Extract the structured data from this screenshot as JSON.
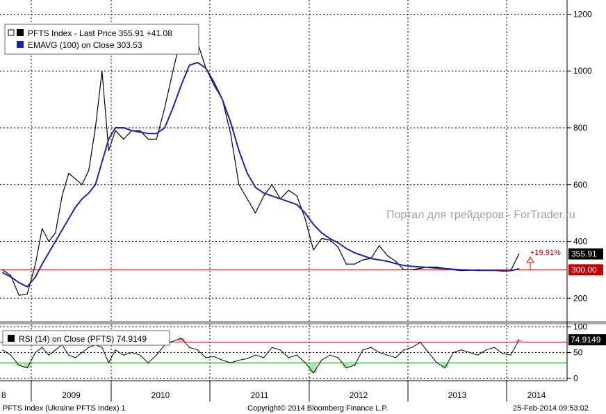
{
  "chart_data": [
    {
      "type": "line",
      "yaxis_side": "right",
      "ylim": [
        120,
        1250
      ],
      "yticks": [
        200,
        400,
        600,
        800,
        1000,
        1200
      ],
      "x_years": [
        "8",
        "2009",
        "2010",
        "2011",
        "2012",
        "2013",
        "2014"
      ],
      "grid": true,
      "legend_placement": "top-left",
      "legend": [
        {
          "marker": "box",
          "text": "PFTS Index - Last Price 355.91  +41.08",
          "color": "#000000"
        },
        {
          "marker": "box",
          "text": "EMAVG (100) on Close   303.53",
          "color": "#1a24b0"
        }
      ],
      "series": [
        {
          "name": "PFTS Index - Last Price",
          "color": "#000000",
          "x": [
            "2008-09",
            "2008-10",
            "2008-11",
            "2008-12",
            "2009-01",
            "2009-02",
            "2009-03",
            "2009-04",
            "2009-05",
            "2009-06",
            "2009-07",
            "2009-08",
            "2009-09",
            "2009-10",
            "2009-11",
            "2009-12",
            "2010-01",
            "2010-02",
            "2010-03",
            "2010-04",
            "2010-05",
            "2010-06",
            "2010-07",
            "2010-08",
            "2010-09",
            "2010-10",
            "2010-11",
            "2010-12",
            "2011-01",
            "2011-02",
            "2011-03",
            "2011-04",
            "2011-05",
            "2011-06",
            "2011-07",
            "2011-08",
            "2011-09",
            "2011-10",
            "2011-11",
            "2011-12",
            "2012-01",
            "2012-02",
            "2012-03",
            "2012-04",
            "2012-05",
            "2012-06",
            "2012-07",
            "2012-08",
            "2012-09",
            "2012-10",
            "2012-11",
            "2012-12",
            "2013-01",
            "2013-02",
            "2013-03",
            "2013-04",
            "2013-05",
            "2013-06",
            "2013-07",
            "2013-08",
            "2013-09",
            "2013-10",
            "2013-11",
            "2013-12",
            "2014-01",
            "2014-02"
          ],
          "values": [
            300,
            280,
            210,
            215,
            320,
            445,
            400,
            430,
            560,
            640,
            620,
            600,
            650,
            800,
            1000,
            720,
            790,
            760,
            790,
            790,
            760,
            760,
            870,
            1000,
            1120,
            1070,
            1100,
            1010,
            950,
            900,
            780,
            600,
            550,
            500,
            560,
            600,
            550,
            580,
            560,
            480,
            370,
            410,
            405,
            380,
            320,
            320,
            335,
            340,
            385,
            350,
            330,
            300,
            300,
            305,
            310,
            310,
            305,
            300,
            297,
            298,
            300,
            298,
            298,
            295,
            297,
            355.91
          ]
        },
        {
          "name": "EMAVG (100) on Close",
          "color": "#1a24b0",
          "x": [
            "2008-09",
            "2008-10",
            "2008-11",
            "2008-12",
            "2009-01",
            "2009-02",
            "2009-03",
            "2009-04",
            "2009-05",
            "2009-06",
            "2009-07",
            "2009-08",
            "2009-09",
            "2009-10",
            "2009-11",
            "2009-12",
            "2010-01",
            "2010-02",
            "2010-03",
            "2010-04",
            "2010-05",
            "2010-06",
            "2010-07",
            "2010-08",
            "2010-09",
            "2010-10",
            "2010-11",
            "2010-12",
            "2011-01",
            "2011-02",
            "2011-03",
            "2011-04",
            "2011-05",
            "2011-06",
            "2011-07",
            "2011-08",
            "2011-09",
            "2011-10",
            "2011-11",
            "2011-12",
            "2012-01",
            "2012-02",
            "2012-03",
            "2012-04",
            "2012-05",
            "2012-06",
            "2012-07",
            "2012-08",
            "2012-09",
            "2012-10",
            "2012-11",
            "2012-12",
            "2013-01",
            "2013-02",
            "2013-03",
            "2013-04",
            "2013-05",
            "2013-06",
            "2013-07",
            "2013-08",
            "2013-09",
            "2013-10",
            "2013-11",
            "2013-12",
            "2014-01",
            "2014-02"
          ],
          "values": [
            290,
            275,
            255,
            240,
            275,
            320,
            360,
            400,
            440,
            480,
            520,
            550,
            570,
            600,
            680,
            760,
            800,
            800,
            790,
            785,
            780,
            780,
            800,
            870,
            950,
            1020,
            1030,
            1010,
            960,
            900,
            820,
            720,
            640,
            590,
            570,
            560,
            550,
            540,
            530,
            500,
            460,
            430,
            410,
            395,
            375,
            360,
            350,
            340,
            335,
            330,
            322,
            315,
            312,
            310,
            308,
            306,
            304,
            302,
            300,
            299,
            298,
            298,
            298,
            297,
            297,
            303.53
          ]
        }
      ],
      "hlines": [
        {
          "value": 300,
          "label": "300.00",
          "color": "#c80000"
        }
      ],
      "price_tags": [
        {
          "value": 355.91,
          "label": "355.91",
          "bg": "#000000"
        },
        {
          "value": 300,
          "label": "300.00",
          "bg": "#c80000"
        }
      ],
      "annotations": [
        {
          "text": "+19.91%",
          "color": "#c80000"
        }
      ],
      "watermark": "Портал для трейдеров - ForTrader.ru"
    },
    {
      "type": "line",
      "yaxis_side": "right",
      "ylim": [
        -5,
        105
      ],
      "yticks": [
        0,
        50,
        100
      ],
      "legend_placement": "top-left",
      "legend": [
        {
          "marker": "box",
          "text": "RSI (14) on Close (PFTS) 74.9149",
          "color": "#000000"
        }
      ],
      "hlines": [
        {
          "value": 70,
          "color": "#c80000"
        },
        {
          "value": 30,
          "color": "#00a000"
        }
      ],
      "price_tags": [
        {
          "value": 74.9149,
          "label": "74.9149",
          "bg": "#000000"
        }
      ],
      "series": [
        {
          "name": "RSI (14) on Close (PFTS)",
          "color": "#000000",
          "x": [
            "2008-09",
            "2008-10",
            "2008-11",
            "2008-12",
            "2009-01",
            "2009-02",
            "2009-03",
            "2009-04",
            "2009-05",
            "2009-06",
            "2009-07",
            "2009-08",
            "2009-09",
            "2009-10",
            "2009-11",
            "2009-12",
            "2010-01",
            "2010-02",
            "2010-03",
            "2010-04",
            "2010-05",
            "2010-06",
            "2010-07",
            "2010-08",
            "2010-09",
            "2010-10",
            "2010-11",
            "2010-12",
            "2011-01",
            "2011-02",
            "2011-03",
            "2011-04",
            "2011-05",
            "2011-06",
            "2011-07",
            "2011-08",
            "2011-09",
            "2011-10",
            "2011-11",
            "2011-12",
            "2012-01",
            "2012-02",
            "2012-03",
            "2012-04",
            "2012-05",
            "2012-06",
            "2012-07",
            "2012-08",
            "2012-09",
            "2012-10",
            "2012-11",
            "2012-12",
            "2013-01",
            "2013-02",
            "2013-03",
            "2013-04",
            "2013-05",
            "2013-06",
            "2013-07",
            "2013-08",
            "2013-09",
            "2013-10",
            "2013-11",
            "2013-12",
            "2014-01",
            "2014-02"
          ],
          "values": [
            55,
            45,
            25,
            20,
            50,
            60,
            45,
            55,
            65,
            45,
            40,
            50,
            60,
            65,
            60,
            30,
            55,
            45,
            50,
            45,
            30,
            45,
            65,
            72,
            78,
            60,
            55,
            40,
            42,
            35,
            30,
            35,
            38,
            45,
            40,
            60,
            55,
            40,
            45,
            30,
            10,
            35,
            45,
            40,
            20,
            25,
            55,
            60,
            50,
            45,
            40,
            55,
            60,
            70,
            50,
            30,
            20,
            50,
            55,
            50,
            45,
            55,
            60,
            48,
            45,
            74.9149
          ]
        }
      ]
    }
  ],
  "x_axis_labels": [
    "8",
    "2009",
    "2010",
    "2011",
    "2012",
    "2013",
    "2014"
  ],
  "footer": {
    "left": "PFTS Index (Ukraine PFTS Index) 1",
    "center": "Copyright© 2014 Bloomberg Finance L.P.",
    "right": "25-Feb-2014 09:53:02"
  }
}
